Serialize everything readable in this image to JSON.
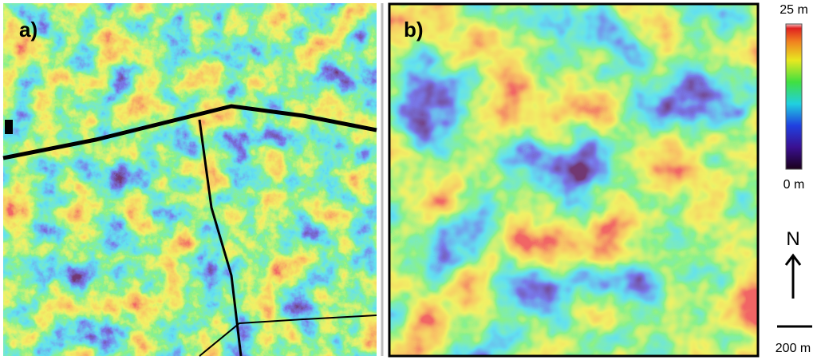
{
  "panels": [
    {
      "label": "a)"
    },
    {
      "label": "b)"
    }
  ],
  "legend": {
    "max": "25 m",
    "min": "0 m"
  },
  "north": "N",
  "scale": "200 m"
}
